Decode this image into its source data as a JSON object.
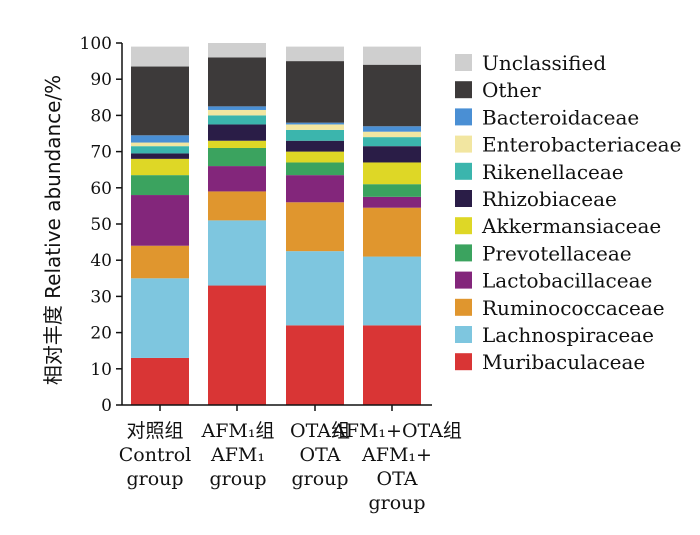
{
  "chart_data": {
    "type": "bar",
    "stacked": true,
    "ylabel": "相对丰度  Relative abundance/%",
    "ylim": [
      0,
      100
    ],
    "yticks": [
      0,
      10,
      20,
      30,
      40,
      50,
      60,
      70,
      80,
      90,
      100
    ],
    "grid": false,
    "legend_position": "right",
    "categories": [
      [
        "对照组",
        "Control",
        "group"
      ],
      [
        "AFM₁组",
        "AFM₁",
        "group"
      ],
      [
        "OTA组",
        "OTA",
        "group"
      ],
      [
        "AFM₁+OTA组",
        "AFM₁+",
        "OTA",
        "group"
      ]
    ],
    "series": [
      {
        "name": "Muribaculaceae",
        "color": "#d93535",
        "values": [
          13,
          33,
          22,
          22
        ]
      },
      {
        "name": "Lachnospiraceae",
        "color": "#7ec6df",
        "values": [
          22,
          18,
          20.5,
          19
        ]
      },
      {
        "name": "Ruminococcaceae",
        "color": "#e0962e",
        "values": [
          9,
          8,
          13.5,
          13.5
        ]
      },
      {
        "name": "Lactobacillaceae",
        "color": "#83267b",
        "values": [
          14,
          7,
          7.5,
          3
        ]
      },
      {
        "name": "Prevotellaceae",
        "color": "#3ba35f",
        "values": [
          5.5,
          5,
          3.5,
          3.5
        ]
      },
      {
        "name": "Akkermansiaceae",
        "color": "#ded726",
        "values": [
          4.5,
          2,
          3,
          6
        ]
      },
      {
        "name": "Rhizobiaceae",
        "color": "#2a1d47",
        "values": [
          1.5,
          4.5,
          3,
          4.5
        ]
      },
      {
        "name": "Rikenellaceae",
        "color": "#3bb5ad",
        "values": [
          2,
          2.5,
          3,
          2.5
        ]
      },
      {
        "name": "Enterobacteriaceae",
        "color": "#f2e6a1",
        "values": [
          1,
          1.5,
          1.5,
          1.5
        ]
      },
      {
        "name": "Bacteroidaceae",
        "color": "#4a8fd4",
        "values": [
          2,
          1,
          0.5,
          1.5
        ]
      },
      {
        "name": "Other",
        "color": "#3d3a3a",
        "values": [
          19,
          13.5,
          17,
          17
        ]
      },
      {
        "name": "Unclassified",
        "color": "#cfcfcf",
        "values": [
          5.5,
          4,
          4,
          5
        ]
      }
    ]
  }
}
